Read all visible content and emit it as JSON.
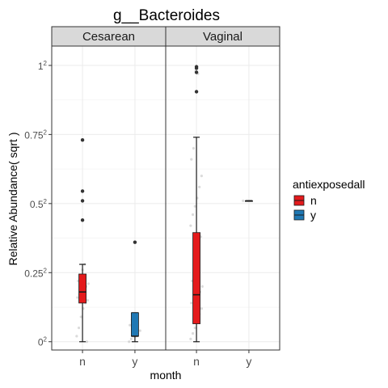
{
  "chart_data": {
    "type": "boxplot",
    "title": "g__Bacteroides",
    "xlabel": "month",
    "ylabel": "Relative Abundance( sqrt )",
    "y_scale": "sqrt",
    "y_ticks": [
      {
        "value": 0,
        "base": "0",
        "exp": "2"
      },
      {
        "value": 0.25,
        "base": "0.25",
        "exp": "2"
      },
      {
        "value": 0.5,
        "base": "0.5",
        "exp": "2"
      },
      {
        "value": 0.75,
        "base": "0.75",
        "exp": "2"
      },
      {
        "value": 1,
        "base": "1",
        "exp": "2"
      }
    ],
    "ylim": [
      -0.03,
      1.07
    ],
    "grid": true,
    "categories": [
      "n",
      "y"
    ],
    "legend": {
      "title": "antiexposedall",
      "position": "right",
      "entries": [
        {
          "label": "n",
          "color": "#e41a1c"
        },
        {
          "label": "y",
          "color": "#1f78b4"
        }
      ]
    },
    "panels": [
      {
        "name": "Cesarean",
        "boxes": [
          {
            "category": "n",
            "group": "n",
            "color": "#e41a1c",
            "min": 0.0,
            "q1": 0.14,
            "median": 0.18,
            "q3": 0.245,
            "max": 0.28,
            "outliers": [
              0.44,
              0.51,
              0.545,
              0.73
            ],
            "jitter": [
              0.02,
              0.05,
              0.09,
              0.12,
              0.14,
              0.15,
              0.16,
              0.17,
              0.18,
              0.19,
              0.2,
              0.21,
              0.22,
              0.24,
              0.26,
              0.28,
              0.0
            ]
          },
          {
            "category": "y",
            "group": "y",
            "color": "#1f78b4",
            "min": 0.0,
            "q1": 0.02,
            "median": 0.02,
            "q3": 0.105,
            "max": 0.105,
            "outliers": [
              0.36
            ],
            "jitter": [
              0.0,
              0.01,
              0.02,
              0.02,
              0.03,
              0.04,
              0.06,
              0.08,
              0.1
            ]
          }
        ]
      },
      {
        "name": "Vaginal",
        "boxes": [
          {
            "category": "n",
            "group": "n",
            "color": "#e41a1c",
            "min": 0.0,
            "q1": 0.065,
            "median": 0.17,
            "q3": 0.395,
            "max": 0.74,
            "outliers": [
              0.905,
              0.975,
              0.99,
              0.995
            ],
            "jitter": [
              0.01,
              0.03,
              0.05,
              0.08,
              0.1,
              0.12,
              0.14,
              0.15,
              0.16,
              0.17,
              0.18,
              0.2,
              0.22,
              0.25,
              0.3,
              0.34,
              0.38,
              0.42,
              0.46,
              0.49,
              0.52,
              0.56,
              0.6,
              0.66,
              0.7,
              0.98,
              0.97
            ]
          },
          {
            "category": "y",
            "group": "y",
            "color": "#1f78b4",
            "min": 0.51,
            "q1": 0.51,
            "median": 0.51,
            "q3": 0.51,
            "max": 0.51,
            "outliers": [],
            "jitter": [
              0.51
            ]
          }
        ]
      }
    ]
  }
}
